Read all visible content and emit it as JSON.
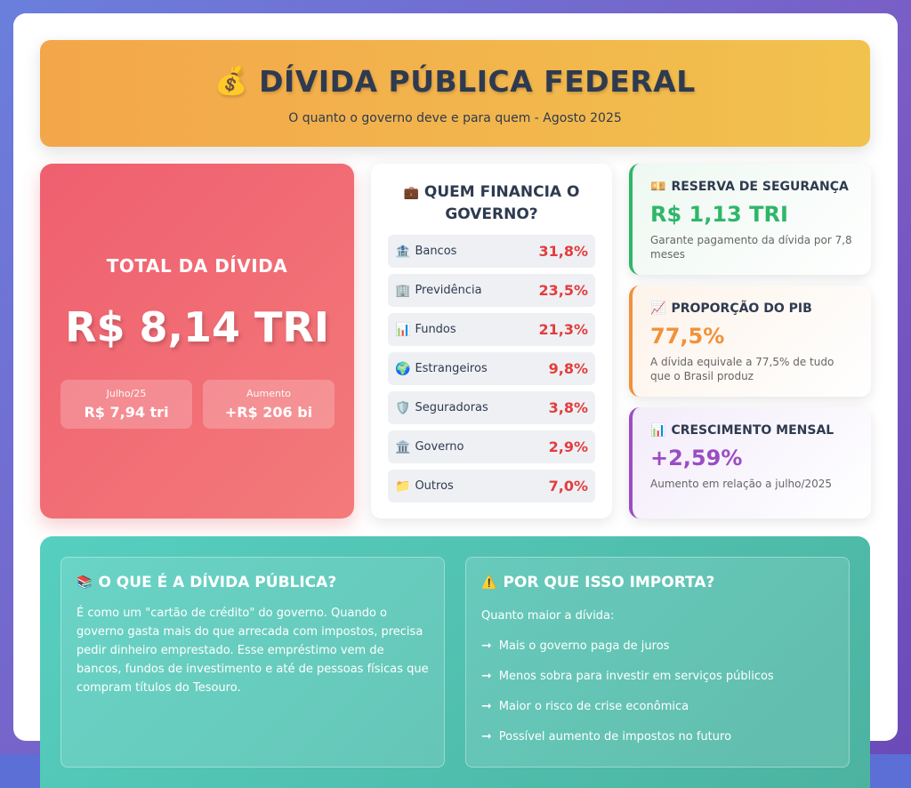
{
  "header": {
    "title": "DÍVIDA PÚBLICA FEDERAL",
    "title_icon": "💰",
    "subtitle": "O quanto o governo deve e para quem - Agosto 2025"
  },
  "total": {
    "label": "TOTAL DA DÍVIDA",
    "value": "R$ 8,14 TRI",
    "previous_label": "Julho/25",
    "previous_value": "R$ 7,94 tri",
    "increase_label": "Aumento",
    "increase_value": "+R$ 206 bi"
  },
  "financiers": {
    "title_icon": "💼",
    "title": "QUEM FINANCIA O GOVERNO?",
    "items": [
      {
        "icon": "🏦",
        "name": "Bancos",
        "pct": "31,8%"
      },
      {
        "icon": "🏢",
        "name": "Previdência",
        "pct": "23,5%"
      },
      {
        "icon": "📊",
        "name": "Fundos",
        "pct": "21,3%"
      },
      {
        "icon": "🌍",
        "name": "Estrangeiros",
        "pct": "9,8%"
      },
      {
        "icon": "🛡️",
        "name": "Seguradoras",
        "pct": "3,8%"
      },
      {
        "icon": "🏛️",
        "name": "Governo",
        "pct": "2,9%"
      },
      {
        "icon": "📁",
        "name": "Outros",
        "pct": "7,0%"
      }
    ]
  },
  "stats": {
    "reserve": {
      "icon": "💴",
      "title": "RESERVA DE SEGURANÇA",
      "value": "R$ 1,13 TRI",
      "desc": "Garante pagamento da dívida por 7,8 meses",
      "color": "#2fb66a"
    },
    "pib": {
      "icon": "📈",
      "title": "PROPORÇÃO DO PIB",
      "value": "77,5%",
      "desc": "A dívida equivale a 77,5% de tudo que o Brasil produz",
      "color": "#f0923a"
    },
    "growth": {
      "icon": "📊",
      "title": "CRESCIMENTO MENSAL",
      "value": "+2,59%",
      "desc": "Aumento em relação a julho/2025",
      "color": "#9b4dc3"
    }
  },
  "what_is": {
    "icon": "📚",
    "title": "O QUE É A DÍVIDA PÚBLICA?",
    "text": "É como um \"cartão de crédito\" do governo. Quando o governo gasta mais do que arrecada com impostos, precisa pedir dinheiro emprestado. Esse empréstimo vem de bancos, fundos de investimento e até de pessoas físicas que compram títulos do Tesouro."
  },
  "why_matters": {
    "icon": "⚠️",
    "title": "POR QUE ISSO IMPORTA?",
    "intro": "Quanto maior a dívida:",
    "arrow": "➞",
    "bullets": [
      "Mais o governo paga de juros",
      "Menos sobra para investir em serviços públicos",
      "Maior o risco de crise econômica",
      "Possível aumento de impostos no futuro"
    ]
  }
}
